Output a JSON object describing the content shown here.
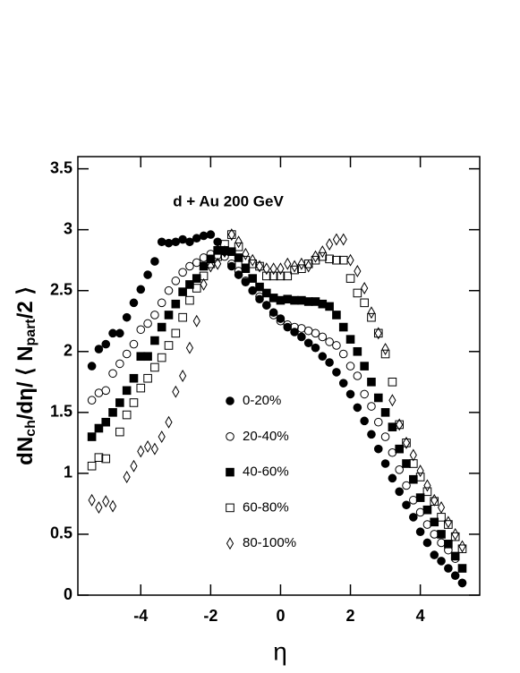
{
  "chart_data": {
    "type": "scatter",
    "annotation": "d + Au  200 GeV",
    "xlabel": "η",
    "ylabel": [
      "dN",
      "ch",
      "/dη/ ⟨ N",
      "part",
      "/2 ⟩"
    ],
    "xlim": [
      -5.8,
      5.7
    ],
    "ylim": [
      0,
      3.6
    ],
    "xticks": [
      -4,
      -2,
      0,
      2,
      4
    ],
    "yticks": [
      0,
      0.5,
      1,
      1.5,
      2,
      2.5,
      3,
      3.5
    ],
    "series": [
      {
        "name": "0-20%",
        "marker": "circle",
        "filled": true,
        "color": "#000000",
        "x": [
          -5.4,
          -5.2,
          -5.0,
          -4.8,
          -4.6,
          -4.4,
          -4.2,
          -4.0,
          -3.8,
          -3.6,
          -3.4,
          -3.2,
          -3.0,
          -2.8,
          -2.6,
          -2.4,
          -2.2,
          -2.0,
          -1.8,
          -1.6,
          -1.4,
          -1.2,
          -1.0,
          -0.8,
          -0.6,
          -0.4,
          -0.2,
          0,
          0.2,
          0.4,
          0.6,
          0.8,
          1.0,
          1.2,
          1.4,
          1.6,
          1.8,
          2.0,
          2.2,
          2.4,
          2.6,
          2.8,
          3.0,
          3.2,
          3.4,
          3.6,
          3.8,
          4.0,
          4.2,
          4.4,
          4.6,
          4.8,
          5.0,
          5.2
        ],
        "values": [
          1.88,
          2.02,
          2.06,
          2.15,
          2.15,
          2.28,
          2.4,
          2.51,
          2.63,
          2.74,
          2.9,
          2.89,
          2.9,
          2.92,
          2.9,
          2.93,
          2.95,
          2.96,
          2.9,
          2.82,
          2.7,
          2.63,
          2.57,
          2.5,
          2.43,
          2.38,
          2.32,
          2.27,
          2.2,
          2.16,
          2.12,
          2.07,
          2.03,
          1.96,
          1.91,
          1.83,
          1.74,
          1.65,
          1.54,
          1.43,
          1.32,
          1.2,
          1.08,
          0.96,
          0.85,
          0.74,
          0.64,
          0.52,
          0.43,
          0.33,
          0.28,
          0.22,
          0.16,
          0.1
        ]
      },
      {
        "name": "20-40%",
        "marker": "circle",
        "filled": false,
        "color": "#000000",
        "x": [
          -5.4,
          -5.2,
          -5.0,
          -4.8,
          -4.6,
          -4.4,
          -4.2,
          -4.0,
          -3.8,
          -3.6,
          -3.4,
          -3.2,
          -3.0,
          -2.8,
          -2.6,
          -2.4,
          -2.2,
          -2.0,
          -1.8,
          -1.6,
          -1.4,
          -1.2,
          -1.0,
          -0.8,
          -0.6,
          -0.4,
          -0.2,
          0,
          0.2,
          0.4,
          0.6,
          0.8,
          1.0,
          1.2,
          1.4,
          1.6,
          1.8,
          2.0,
          2.2,
          2.4,
          2.6,
          2.8,
          3.0,
          3.2,
          3.4,
          3.6,
          3.8,
          4.0,
          4.2,
          4.4,
          4.6,
          4.8,
          5.0,
          5.2
        ],
        "values": [
          1.6,
          1.66,
          1.68,
          1.82,
          1.9,
          1.98,
          2.06,
          2.18,
          2.23,
          2.3,
          2.4,
          2.5,
          2.58,
          2.65,
          2.7,
          2.73,
          2.77,
          2.8,
          2.79,
          2.78,
          2.72,
          2.66,
          2.58,
          2.5,
          2.45,
          2.38,
          2.3,
          2.25,
          2.22,
          2.2,
          2.19,
          2.17,
          2.15,
          2.12,
          2.08,
          2.05,
          1.98,
          1.88,
          1.8,
          1.65,
          1.55,
          1.42,
          1.3,
          1.17,
          1.03,
          0.9,
          0.78,
          0.68,
          0.58,
          0.5,
          0.43,
          0.37,
          0.3,
          0.1
        ]
      },
      {
        "name": "40-60%",
        "marker": "square",
        "filled": true,
        "color": "#000000",
        "x": [
          -5.4,
          -5.2,
          -5.0,
          -4.8,
          -4.6,
          -4.4,
          -4.2,
          -4.0,
          -3.8,
          -3.6,
          -3.4,
          -3.2,
          -3.0,
          -2.8,
          -2.6,
          -2.4,
          -2.2,
          -2.0,
          -1.8,
          -1.6,
          -1.4,
          -1.2,
          -1.0,
          -0.8,
          -0.6,
          -0.4,
          -0.2,
          0,
          0.2,
          0.4,
          0.6,
          0.8,
          1.0,
          1.2,
          1.4,
          1.6,
          1.8,
          2.0,
          2.2,
          2.4,
          2.6,
          2.8,
          3.0,
          3.2,
          3.4,
          3.6,
          3.8,
          4.0,
          4.2,
          4.4,
          4.6,
          4.8,
          5.0,
          5.2
        ],
        "values": [
          1.3,
          1.37,
          1.42,
          1.5,
          1.58,
          1.68,
          1.78,
          1.96,
          1.96,
          2.09,
          2.2,
          2.3,
          2.39,
          2.49,
          2.55,
          2.6,
          2.7,
          2.76,
          2.83,
          2.83,
          2.82,
          2.77,
          2.68,
          2.6,
          2.53,
          2.48,
          2.44,
          2.42,
          2.43,
          2.42,
          2.42,
          2.41,
          2.41,
          2.39,
          2.37,
          2.3,
          2.2,
          2.1,
          2.0,
          1.88,
          1.75,
          1.62,
          1.5,
          1.38,
          1.2,
          1.08,
          0.95,
          0.8,
          0.7,
          0.6,
          0.5,
          0.42,
          0.32,
          0.22
        ]
      },
      {
        "name": "60-80%",
        "marker": "square",
        "filled": false,
        "color": "#000000",
        "x": [
          -5.4,
          -5.2,
          -5.0,
          -4.6,
          -4.4,
          -4.2,
          -4.0,
          -3.8,
          -3.6,
          -3.4,
          -3.2,
          -3.0,
          -2.8,
          -2.6,
          -2.4,
          -2.2,
          -2.0,
          -1.8,
          -1.6,
          -1.4,
          -1.2,
          -1.0,
          -0.8,
          -0.6,
          -0.4,
          -0.2,
          0,
          0.2,
          0.4,
          0.6,
          0.8,
          1.0,
          1.2,
          1.4,
          1.6,
          1.8,
          2.0,
          2.2,
          2.4,
          2.6,
          2.8,
          3.0,
          3.2,
          3.4,
          3.6,
          3.8,
          4.0,
          4.2,
          4.4,
          4.6,
          4.8,
          5.0,
          5.2
        ],
        "values": [
          1.06,
          1.13,
          1.12,
          1.34,
          1.48,
          1.58,
          1.7,
          1.78,
          1.87,
          1.95,
          2.05,
          2.15,
          2.28,
          2.42,
          2.52,
          2.62,
          2.72,
          2.78,
          2.88,
          2.96,
          2.86,
          2.75,
          2.72,
          2.7,
          2.62,
          2.62,
          2.62,
          2.62,
          2.67,
          2.68,
          2.72,
          2.75,
          2.78,
          2.76,
          2.75,
          2.75,
          2.6,
          2.48,
          2.4,
          2.28,
          2.15,
          1.98,
          1.75,
          1.4,
          1.25,
          1.08,
          0.97,
          0.85,
          0.77,
          0.64,
          0.58,
          0.48,
          0.38
        ]
      },
      {
        "name": "80-100%",
        "marker": "diamond",
        "filled": false,
        "color": "#000000",
        "x": [
          -5.4,
          -5.2,
          -5.0,
          -4.8,
          -4.4,
          -4.2,
          -4.0,
          -3.8,
          -3.6,
          -3.4,
          -3.2,
          -3.0,
          -2.8,
          -2.6,
          -2.4,
          -2.2,
          -2.0,
          -1.8,
          -1.6,
          -1.4,
          -1.2,
          -1.0,
          -0.8,
          -0.6,
          -0.4,
          -0.2,
          0,
          0.2,
          0.4,
          0.6,
          0.8,
          1.0,
          1.2,
          1.4,
          1.6,
          1.8,
          2.0,
          2.2,
          2.4,
          2.6,
          2.8,
          3.0,
          3.2,
          3.4,
          3.6,
          3.8,
          4.0,
          4.2,
          4.4,
          4.6,
          4.8,
          5.0,
          5.2
        ],
        "values": [
          0.78,
          0.72,
          0.77,
          0.73,
          0.97,
          1.06,
          1.18,
          1.22,
          1.2,
          1.3,
          1.42,
          1.67,
          1.8,
          2.03,
          2.25,
          2.55,
          2.7,
          2.72,
          2.82,
          2.96,
          2.9,
          2.8,
          2.75,
          2.7,
          2.68,
          2.68,
          2.68,
          2.72,
          2.7,
          2.72,
          2.7,
          2.78,
          2.82,
          2.88,
          2.92,
          2.92,
          2.75,
          2.66,
          2.52,
          2.32,
          2.15,
          2.02,
          1.6,
          1.4,
          1.25,
          1.15,
          1.02,
          0.9,
          0.78,
          0.72,
          0.6,
          0.5,
          0.4
        ]
      }
    ]
  }
}
